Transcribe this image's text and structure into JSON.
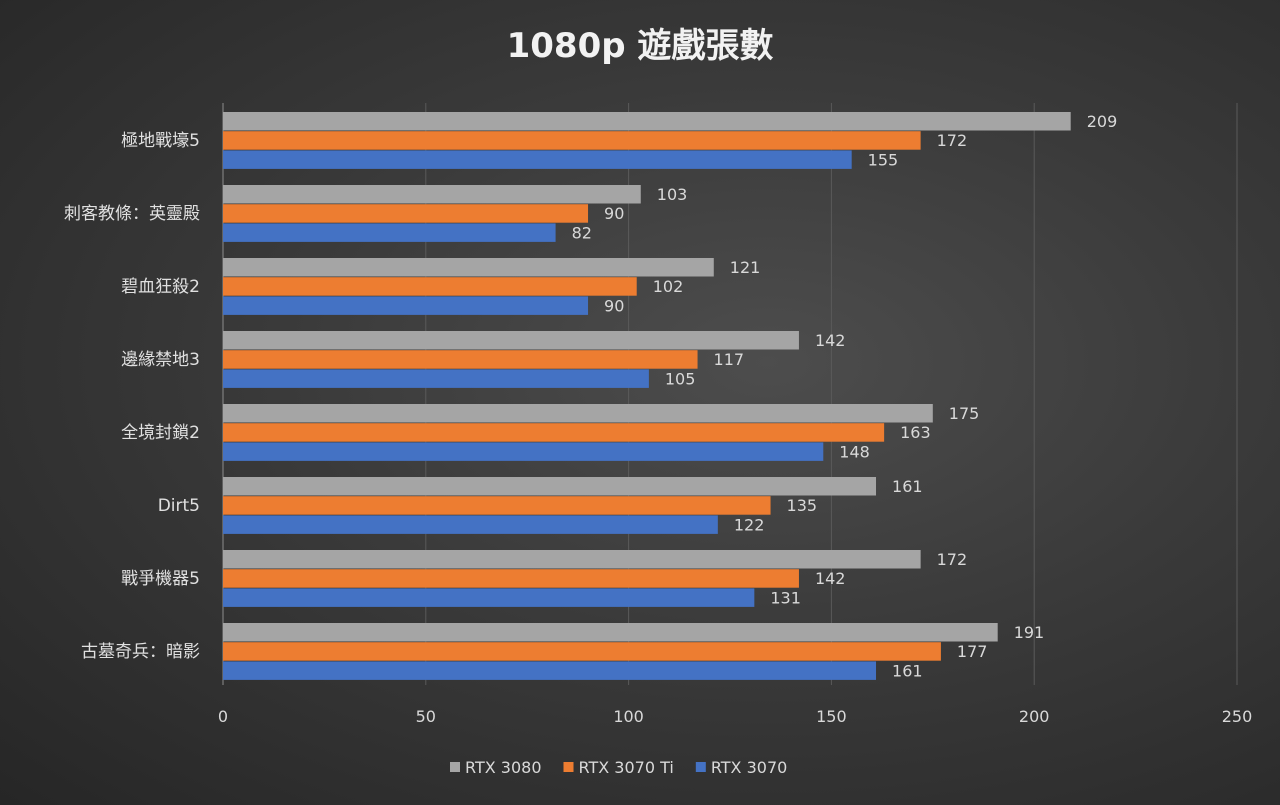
{
  "chart_data": {
    "type": "bar",
    "orientation": "horizontal",
    "title": "1080p 遊戲張數",
    "categories": [
      "極地戰壕5",
      "刺客教條：英靈殿",
      "碧血狂殺2",
      "邊緣禁地3",
      "全境封鎖2",
      "Dirt5",
      "戰爭機器5",
      "古墓奇兵：暗影"
    ],
    "series": [
      {
        "name": "RTX 3080",
        "color": "#a5a5a5",
        "values": [
          209,
          103,
          121,
          142,
          175,
          161,
          172,
          191
        ]
      },
      {
        "name": "RTX 3070 Ti",
        "color": "#ed7d31",
        "values": [
          172,
          90,
          102,
          117,
          163,
          135,
          142,
          177
        ]
      },
      {
        "name": "RTX 3070",
        "color": "#4472c4",
        "values": [
          155,
          82,
          90,
          105,
          148,
          122,
          131,
          161
        ]
      }
    ],
    "xlim": [
      0,
      250
    ],
    "xticks": [
      0,
      50,
      100,
      150,
      200,
      250
    ],
    "grid": true,
    "legend_position": "bottom",
    "data_labels": true
  }
}
